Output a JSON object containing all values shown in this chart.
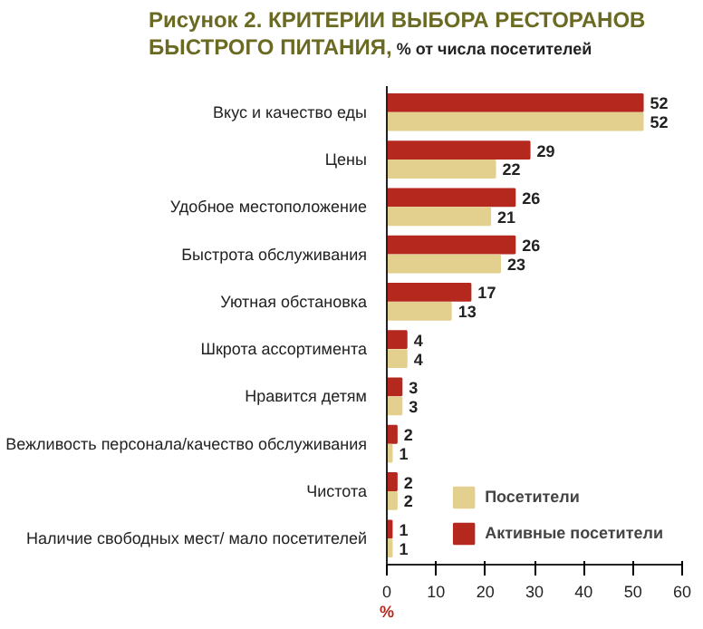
{
  "chart_data": {
    "type": "bar",
    "orientation": "horizontal",
    "title": "Рисунок 2. КРИТЕРИИ ВЫБОРА РЕСТОРАНОВ БЫСТРОГО ПИТАНИЯ,",
    "subtitle": "% от числа посетителей",
    "xlabel": "%",
    "categories": [
      "Вкус и качество еды",
      "Цены",
      "Удобное местоположение",
      "Быстрота обслуживания",
      "Уютная обстановка",
      "Шкрота ассортимента",
      "Нравится детям",
      "Вежливость персонала/качество обслуживания",
      "Чистота",
      "Наличие свободных мест/ мало посетителей"
    ],
    "series": [
      {
        "name": "Активные посетители",
        "color": "#b5281e",
        "values": [
          52,
          29,
          26,
          26,
          17,
          4,
          3,
          2,
          2,
          1
        ]
      },
      {
        "name": "Посетители",
        "color": "#e3cf8e",
        "values": [
          52,
          22,
          21,
          23,
          13,
          4,
          3,
          1,
          2,
          1
        ]
      }
    ],
    "xlim": [
      0,
      60
    ],
    "xticks": [
      0,
      10,
      20,
      30,
      40,
      50,
      60
    ],
    "data_labels": true,
    "grid": false,
    "legend": "bottom right"
  }
}
